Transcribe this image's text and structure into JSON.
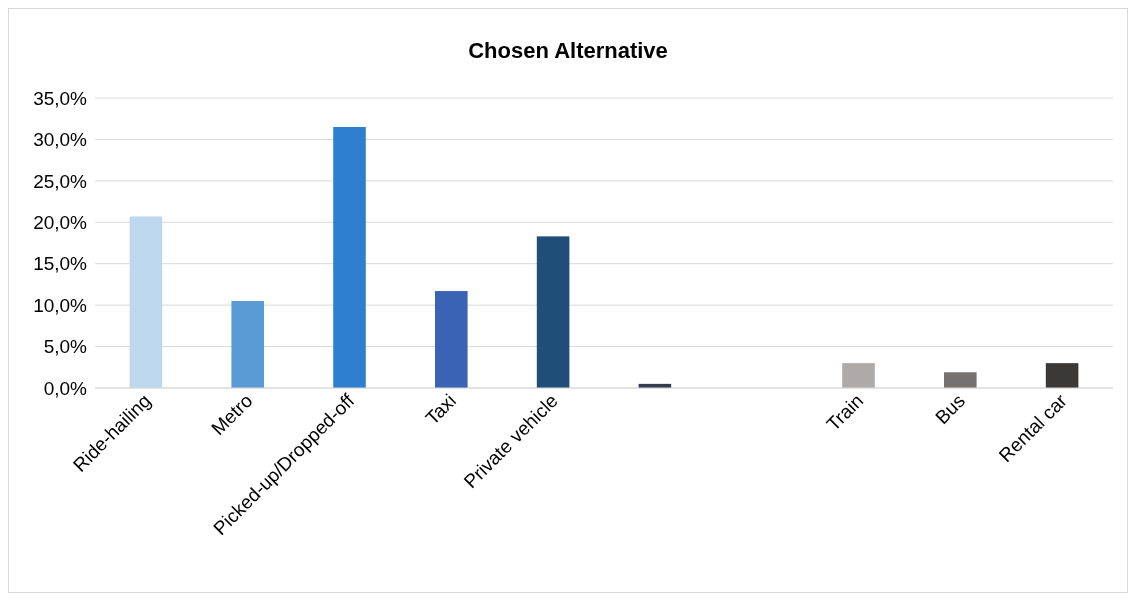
{
  "chart_data": {
    "type": "bar",
    "title": "Chosen Alternative",
    "categories": [
      "Ride-hailing",
      "Metro",
      "Picked-up/Dropped-off",
      "Taxi",
      "Private vehicle",
      null,
      null,
      "Train",
      "Bus",
      "Rental car"
    ],
    "values": [
      20.7,
      10.5,
      31.5,
      11.7,
      18.3,
      0.5,
      0,
      3.0,
      1.9,
      3.0
    ],
    "colors": [
      "#bdd7ee",
      "#5b9bd5",
      "#2e7fcf",
      "#3a62b5",
      "#1f4e79",
      "#333f50",
      "#1f4e79",
      "#aeaaaa",
      "#767171",
      "#3b3838"
    ],
    "ylim": [
      0,
      35
    ],
    "yticks": [
      {
        "value": 0,
        "label": "0,0%"
      },
      {
        "value": 5,
        "label": "5,0%"
      },
      {
        "value": 10,
        "label": "10,0%"
      },
      {
        "value": 15,
        "label": "15,0%"
      },
      {
        "value": 20,
        "label": "20,0%"
      },
      {
        "value": 25,
        "label": "25,0%"
      },
      {
        "value": 30,
        "label": "30,0%"
      },
      {
        "value": 35,
        "label": "35,0%"
      }
    ],
    "grid": "y"
  }
}
